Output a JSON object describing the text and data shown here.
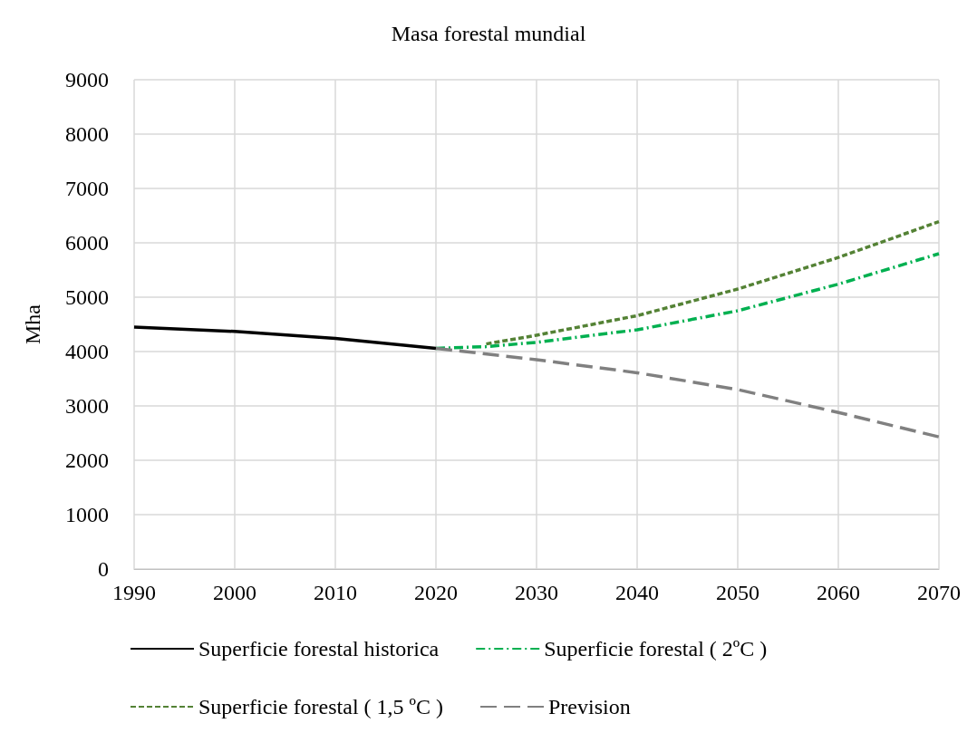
{
  "chart_data": {
    "type": "line",
    "title": "Masa forestal mundial",
    "ylabel": "Mha",
    "xlim": [
      1990,
      2070
    ],
    "xticks": [
      1990,
      2000,
      2010,
      2020,
      2030,
      2040,
      2050,
      2060,
      2070
    ],
    "ylim": [
      0,
      9000
    ],
    "yticks": [
      0,
      1000,
      2000,
      3000,
      4000,
      5000,
      6000,
      7000,
      8000,
      9000
    ],
    "grid": true,
    "legend": "bottom",
    "marker": "none",
    "series": [
      {
        "name": "Superficie forestal historica",
        "color": "#000000",
        "line_style": "solid",
        "x": [
          1990,
          2000,
          2010,
          2020
        ],
        "values": [
          4450,
          4370,
          4240,
          4060
        ]
      },
      {
        "name": "Superficie forestal ( 2ºC )",
        "color": "#00b050",
        "line_style": "dashdot",
        "x": [
          2020,
          2025,
          2030,
          2040,
          2050,
          2060,
          2070
        ],
        "values": [
          4060,
          4090,
          4170,
          4400,
          4750,
          5240,
          5800
        ]
      },
      {
        "name": "Superficie forestal ( 1,5 ºC )",
        "color": "#548235",
        "line_style": "dotted",
        "x": [
          2025,
          2030,
          2040,
          2050,
          2060,
          2070
        ],
        "values": [
          4140,
          4300,
          4660,
          5150,
          5730,
          6390
        ]
      },
      {
        "name": "Prevision",
        "color": "#808080",
        "line_style": "dashed",
        "x": [
          2020,
          2030,
          2040,
          2050,
          2060,
          2070
        ],
        "values": [
          4060,
          3850,
          3610,
          3300,
          2880,
          2430
        ]
      }
    ]
  }
}
